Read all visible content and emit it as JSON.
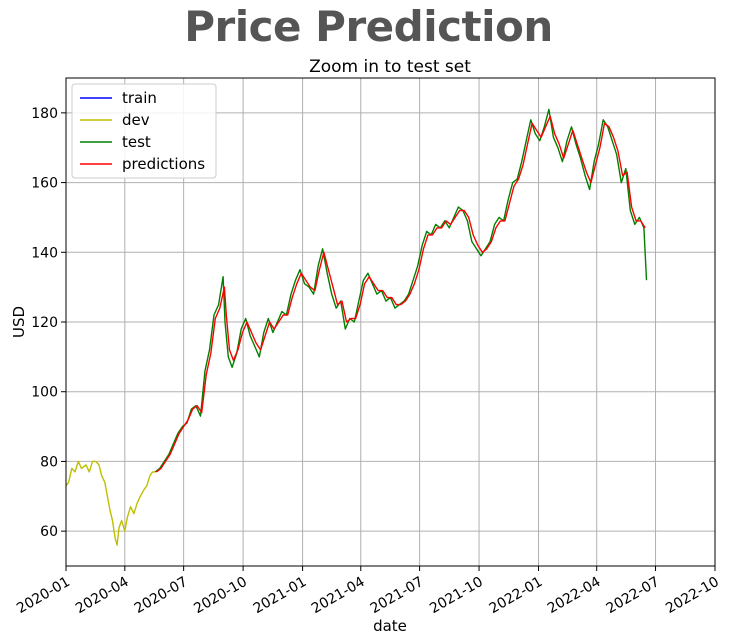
{
  "page": {
    "title": "Price Prediction"
  },
  "chart_data": {
    "type": "line",
    "title": "Zoom in to test set",
    "xlabel": "date",
    "ylabel": "USD",
    "xlim": [
      "2020-01-01",
      "2022-10-01"
    ],
    "ylim": [
      50,
      190
    ],
    "grid": true,
    "legend_placement": "top-left",
    "x_tick_labels": [
      "2020-01",
      "2020-04",
      "2020-07",
      "2020-10",
      "2021-01",
      "2021-04",
      "2021-07",
      "2021-10",
      "2022-01",
      "2022-04",
      "2022-07",
      "2022-10"
    ],
    "y_ticks": [
      60,
      80,
      100,
      120,
      140,
      160,
      180
    ],
    "series": [
      {
        "name": "train",
        "color": "#0000ff",
        "x": [],
        "values": []
      },
      {
        "name": "dev",
        "color": "#bfbf00",
        "x": [
          "2020-01-01",
          "2020-01-05",
          "2020-01-10",
          "2020-01-15",
          "2020-01-20",
          "2020-01-25",
          "2020-02-01",
          "2020-02-06",
          "2020-02-11",
          "2020-02-16",
          "2020-02-21",
          "2020-02-25",
          "2020-03-01",
          "2020-03-05",
          "2020-03-09",
          "2020-03-13",
          "2020-03-17",
          "2020-03-20",
          "2020-03-23",
          "2020-03-27",
          "2020-04-01",
          "2020-04-05",
          "2020-04-10",
          "2020-04-15",
          "2020-04-20",
          "2020-04-25",
          "2020-05-01",
          "2020-05-05",
          "2020-05-10",
          "2020-05-14",
          "2020-05-18"
        ],
        "values": [
          73,
          74,
          78,
          77,
          80,
          78,
          79,
          77,
          80,
          80,
          79,
          76,
          74,
          70,
          66,
          63,
          58,
          56,
          61,
          63,
          60,
          64,
          67,
          65,
          68,
          70,
          72,
          73,
          76,
          77,
          77
        ]
      },
      {
        "name": "test",
        "color": "#008000",
        "x": [
          "2020-05-18",
          "2020-05-25",
          "2020-06-01",
          "2020-06-08",
          "2020-06-15",
          "2020-06-22",
          "2020-06-29",
          "2020-07-06",
          "2020-07-13",
          "2020-07-20",
          "2020-07-27",
          "2020-08-03",
          "2020-08-10",
          "2020-08-17",
          "2020-08-24",
          "2020-08-31",
          "2020-09-03",
          "2020-09-08",
          "2020-09-14",
          "2020-09-21",
          "2020-09-28",
          "2020-10-05",
          "2020-10-12",
          "2020-10-19",
          "2020-10-26",
          "2020-11-02",
          "2020-11-09",
          "2020-11-16",
          "2020-11-23",
          "2020-11-30",
          "2020-12-07",
          "2020-12-14",
          "2020-12-21",
          "2020-12-28",
          "2021-01-04",
          "2021-01-11",
          "2021-01-18",
          "2021-01-25",
          "2021-02-01",
          "2021-02-08",
          "2021-02-15",
          "2021-02-22",
          "2021-03-01",
          "2021-03-08",
          "2021-03-15",
          "2021-03-22",
          "2021-03-29",
          "2021-04-05",
          "2021-04-12",
          "2021-04-19",
          "2021-04-26",
          "2021-05-03",
          "2021-05-10",
          "2021-05-17",
          "2021-05-24",
          "2021-05-31",
          "2021-06-07",
          "2021-06-14",
          "2021-06-21",
          "2021-06-28",
          "2021-07-05",
          "2021-07-12",
          "2021-07-19",
          "2021-07-26",
          "2021-08-02",
          "2021-08-09",
          "2021-08-16",
          "2021-08-23",
          "2021-08-30",
          "2021-09-06",
          "2021-09-13",
          "2021-09-20",
          "2021-09-27",
          "2021-10-04",
          "2021-10-11",
          "2021-10-18",
          "2021-10-25",
          "2021-11-01",
          "2021-11-08",
          "2021-11-15",
          "2021-11-22",
          "2021-11-29",
          "2021-12-06",
          "2021-12-13",
          "2021-12-20",
          "2021-12-27",
          "2022-01-03",
          "2022-01-10",
          "2022-01-17",
          "2022-01-24",
          "2022-01-31",
          "2022-02-07",
          "2022-02-14",
          "2022-02-21",
          "2022-02-28",
          "2022-03-07",
          "2022-03-14",
          "2022-03-21",
          "2022-03-28",
          "2022-04-04",
          "2022-04-11",
          "2022-04-18",
          "2022-04-25",
          "2022-05-02",
          "2022-05-09",
          "2022-05-16",
          "2022-05-23",
          "2022-05-30",
          "2022-06-06",
          "2022-06-13",
          "2022-06-17"
        ],
        "values": [
          77,
          78,
          80,
          82,
          85,
          88,
          90,
          91,
          95,
          96,
          93,
          106,
          112,
          122,
          125,
          133,
          120,
          110,
          107,
          111,
          118,
          121,
          116,
          113,
          110,
          117,
          121,
          117,
          120,
          123,
          122,
          128,
          132,
          135,
          131,
          130,
          128,
          136,
          141,
          134,
          128,
          124,
          126,
          118,
          121,
          120,
          126,
          132,
          134,
          131,
          128,
          129,
          126,
          127,
          124,
          125,
          126,
          128,
          132,
          136,
          142,
          146,
          145,
          148,
          147,
          149,
          147,
          150,
          153,
          152,
          149,
          143,
          141,
          139,
          141,
          143,
          148,
          150,
          149,
          155,
          160,
          161,
          166,
          172,
          178,
          174,
          172,
          176,
          181,
          173,
          170,
          166,
          172,
          176,
          171,
          167,
          162,
          158,
          166,
          171,
          178,
          176,
          172,
          168,
          160,
          164,
          152,
          148,
          150,
          147,
          132
        ]
      },
      {
        "name": "predictions",
        "color": "#ff0000",
        "x": [
          "2020-05-20",
          "2020-05-27",
          "2020-06-03",
          "2020-06-10",
          "2020-06-17",
          "2020-06-24",
          "2020-07-01",
          "2020-07-08",
          "2020-07-15",
          "2020-07-22",
          "2020-07-29",
          "2020-08-05",
          "2020-08-12",
          "2020-08-19",
          "2020-08-26",
          "2020-09-02",
          "2020-09-05",
          "2020-09-10",
          "2020-09-16",
          "2020-09-23",
          "2020-09-30",
          "2020-10-07",
          "2020-10-14",
          "2020-10-21",
          "2020-10-28",
          "2020-11-04",
          "2020-11-11",
          "2020-11-18",
          "2020-11-25",
          "2020-12-02",
          "2020-12-09",
          "2020-12-16",
          "2020-12-23",
          "2020-12-30",
          "2021-01-06",
          "2021-01-13",
          "2021-01-20",
          "2021-01-27",
          "2021-02-03",
          "2021-02-10",
          "2021-02-17",
          "2021-02-24",
          "2021-03-03",
          "2021-03-10",
          "2021-03-17",
          "2021-03-24",
          "2021-03-31",
          "2021-04-07",
          "2021-04-14",
          "2021-04-21",
          "2021-04-28",
          "2021-05-05",
          "2021-05-12",
          "2021-05-19",
          "2021-05-26",
          "2021-06-02",
          "2021-06-09",
          "2021-06-16",
          "2021-06-23",
          "2021-06-30",
          "2021-07-07",
          "2021-07-14",
          "2021-07-21",
          "2021-07-28",
          "2021-08-04",
          "2021-08-11",
          "2021-08-18",
          "2021-08-25",
          "2021-09-01",
          "2021-09-08",
          "2021-09-15",
          "2021-09-22",
          "2021-09-29",
          "2021-10-06",
          "2021-10-13",
          "2021-10-20",
          "2021-10-27",
          "2021-11-03",
          "2021-11-10",
          "2021-11-17",
          "2021-11-24",
          "2021-12-01",
          "2021-12-08",
          "2021-12-15",
          "2021-12-22",
          "2021-12-29",
          "2022-01-05",
          "2022-01-12",
          "2022-01-19",
          "2022-01-26",
          "2022-02-02",
          "2022-02-09",
          "2022-02-16",
          "2022-02-23",
          "2022-03-02",
          "2022-03-09",
          "2022-03-16",
          "2022-03-23",
          "2022-03-30",
          "2022-04-06",
          "2022-04-13",
          "2022-04-20",
          "2022-04-27",
          "2022-05-04",
          "2022-05-11",
          "2022-05-18",
          "2022-05-25",
          "2022-06-01",
          "2022-06-08",
          "2022-06-15"
        ],
        "values": [
          77,
          78,
          80,
          82,
          85,
          88,
          90,
          92,
          95,
          96,
          94,
          105,
          111,
          121,
          124,
          130,
          122,
          112,
          109,
          112,
          117,
          120,
          117,
          114,
          112,
          116,
          120,
          118,
          120,
          122,
          122,
          127,
          131,
          134,
          132,
          130,
          129,
          135,
          140,
          135,
          130,
          125,
          126,
          120,
          121,
          121,
          125,
          131,
          133,
          131,
          129,
          129,
          127,
          127,
          125,
          125,
          126,
          128,
          131,
          135,
          141,
          145,
          145,
          147,
          147,
          149,
          148,
          150,
          152,
          152,
          150,
          145,
          142,
          140,
          141,
          143,
          147,
          149,
          149,
          154,
          159,
          161,
          165,
          171,
          177,
          175,
          173,
          176,
          179,
          174,
          171,
          167,
          171,
          175,
          171,
          167,
          163,
          160,
          165,
          170,
          177,
          176,
          173,
          169,
          162,
          163,
          153,
          149,
          149,
          147
        ]
      }
    ]
  }
}
